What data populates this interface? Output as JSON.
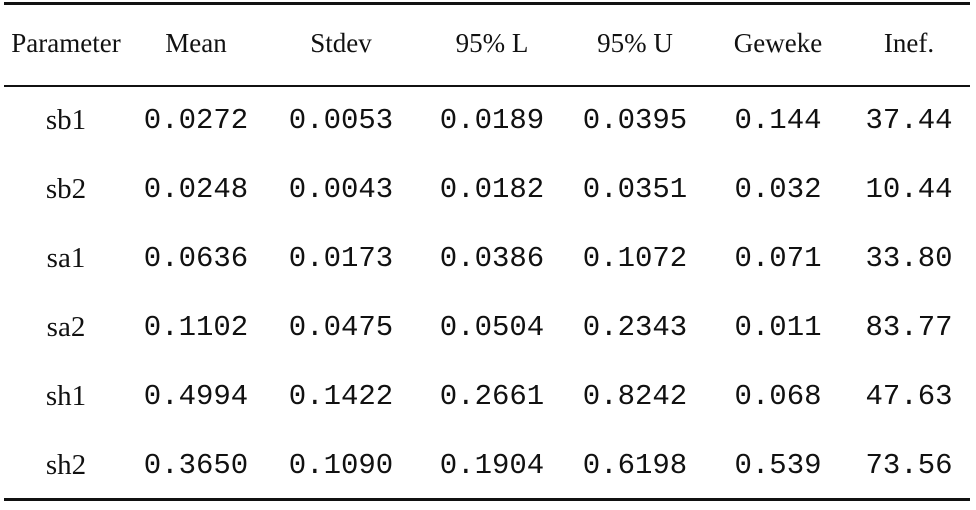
{
  "table": {
    "headers": [
      "Parameter",
      "Mean",
      "Stdev",
      "95% L",
      "95% U",
      "Geweke",
      "Inef."
    ],
    "rows": [
      {
        "parameter": "sb1",
        "mean": "0.0272",
        "stdev": "0.0053",
        "l95": "0.0189",
        "u95": "0.0395",
        "geweke": "0.144",
        "inef": "37.44"
      },
      {
        "parameter": "sb2",
        "mean": "0.0248",
        "stdev": "0.0043",
        "l95": "0.0182",
        "u95": "0.0351",
        "geweke": "0.032",
        "inef": "10.44"
      },
      {
        "parameter": "sa1",
        "mean": "0.0636",
        "stdev": "0.0173",
        "l95": "0.0386",
        "u95": "0.1072",
        "geweke": "0.071",
        "inef": "33.80"
      },
      {
        "parameter": "sa2",
        "mean": "0.1102",
        "stdev": "0.0475",
        "l95": "0.0504",
        "u95": "0.2343",
        "geweke": "0.011",
        "inef": "83.77"
      },
      {
        "parameter": "sh1",
        "mean": "0.4994",
        "stdev": "0.1422",
        "l95": "0.2661",
        "u95": "0.8242",
        "geweke": "0.068",
        "inef": "47.63"
      },
      {
        "parameter": "sh2",
        "mean": "0.3650",
        "stdev": "0.1090",
        "l95": "0.1904",
        "u95": "0.6198",
        "geweke": "0.539",
        "inef": "73.56"
      }
    ]
  }
}
